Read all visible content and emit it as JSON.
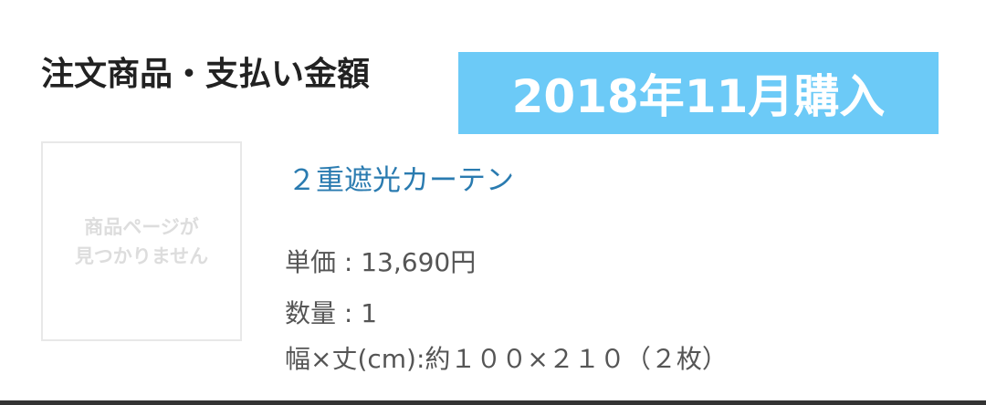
{
  "header": {
    "title": "注文商品・支払い金額",
    "badge": "2018年11月購入"
  },
  "item": {
    "image_placeholder_line1": "商品ページが",
    "image_placeholder_line2": "見つかりません",
    "name": "２重遮光カーテン",
    "unit_price": "単価 : 13,690円",
    "quantity": "数量 : 1",
    "size": "幅×丈(cm):約１００×２１０（２枚）"
  },
  "colors": {
    "badge": "#6ccaf7",
    "link": "#2a7bb0"
  }
}
